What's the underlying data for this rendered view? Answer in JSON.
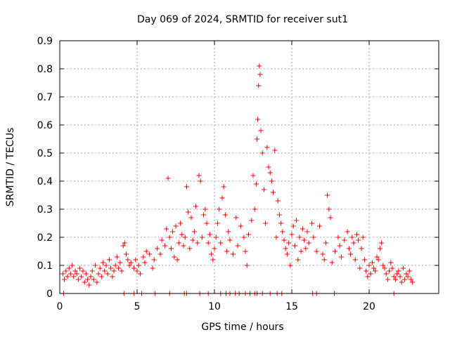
{
  "chart_data": {
    "type": "scatter",
    "title": "Day 069 of 2024, SRMTID for receiver sut1",
    "xlabel": "GPS time / hours",
    "ylabel": "SRMTID / TECUs",
    "xlim": [
      0,
      24.5
    ],
    "ylim": [
      0,
      0.9
    ],
    "xticks": [
      0,
      5,
      10,
      15,
      20
    ],
    "xtick_labels": [
      "0",
      "5",
      "10",
      "15",
      "20"
    ],
    "yticks": [
      0,
      0.1,
      0.2,
      0.3,
      0.4,
      0.5,
      0.6,
      0.7,
      0.8,
      0.9
    ],
    "ytick_labels": [
      "0",
      "0.1",
      "0.2",
      "0.3",
      "0.4",
      "0.5",
      "0.6",
      "0.7",
      "0.8",
      "0.9"
    ],
    "grid": true,
    "marker": "+",
    "color": "#ff0000",
    "series": [
      {
        "name": "SRMTID",
        "points": [
          [
            0.2,
            0.07
          ],
          [
            0.3,
            0.05
          ],
          [
            0.4,
            0.08
          ],
          [
            0.5,
            0.06
          ],
          [
            0.6,
            0.09
          ],
          [
            0.7,
            0.07
          ],
          [
            0.8,
            0.1
          ],
          [
            0.9,
            0.06
          ],
          [
            1.0,
            0.08
          ],
          [
            1.1,
            0.07
          ],
          [
            1.2,
            0.05
          ],
          [
            1.3,
            0.09
          ],
          [
            1.4,
            0.06
          ],
          [
            1.5,
            0.08
          ],
          [
            1.6,
            0.04
          ],
          [
            1.7,
            0.07
          ],
          [
            1.8,
            0.05
          ],
          [
            1.9,
            0.03
          ],
          [
            2.0,
            0.06
          ],
          [
            2.1,
            0.08
          ],
          [
            2.2,
            0.05
          ],
          [
            2.3,
            0.1
          ],
          [
            2.4,
            0.04
          ],
          [
            2.5,
            0.07
          ],
          [
            2.6,
            0.09
          ],
          [
            2.7,
            0.06
          ],
          [
            2.8,
            0.11
          ],
          [
            2.9,
            0.08
          ],
          [
            3.0,
            0.1
          ],
          [
            3.1,
            0.07
          ],
          [
            3.2,
            0.12
          ],
          [
            3.3,
            0.09
          ],
          [
            3.4,
            0.06
          ],
          [
            3.5,
            0.08
          ],
          [
            3.6,
            0.1
          ],
          [
            3.7,
            0.13
          ],
          [
            3.8,
            0.09
          ],
          [
            3.9,
            0.11
          ],
          [
            4.0,
            0.08
          ],
          [
            4.1,
            0.17
          ],
          [
            4.2,
            0.18
          ],
          [
            4.3,
            0.14
          ],
          [
            4.4,
            0.12
          ],
          [
            4.5,
            0.1
          ],
          [
            4.6,
            0.11
          ],
          [
            4.8,
            0.09
          ],
          [
            4.9,
            0.12
          ],
          [
            5.0,
            0.08
          ],
          [
            5.1,
            0.1
          ],
          [
            5.2,
            0.07
          ],
          [
            5.4,
            0.13
          ],
          [
            5.5,
            0.11
          ],
          [
            5.6,
            0.15
          ],
          [
            5.8,
            0.14
          ],
          [
            6.0,
            0.09
          ],
          [
            6.1,
            0.12
          ],
          [
            6.3,
            0.16
          ],
          [
            6.5,
            0.14
          ],
          [
            6.6,
            0.19
          ],
          [
            6.8,
            0.17
          ],
          [
            6.9,
            0.23
          ],
          [
            7.0,
            0.41
          ],
          [
            7.1,
            0.2
          ],
          [
            7.2,
            0.16
          ],
          [
            7.3,
            0.22
          ],
          [
            7.4,
            0.13
          ],
          [
            7.5,
            0.24
          ],
          [
            7.6,
            0.12
          ],
          [
            7.7,
            0.18
          ],
          [
            7.8,
            0.25
          ],
          [
            7.9,
            0.21
          ],
          [
            8.0,
            0.17
          ],
          [
            8.1,
            0.2
          ],
          [
            8.2,
            0.38
          ],
          [
            8.3,
            0.29
          ],
          [
            8.4,
            0.16
          ],
          [
            8.5,
            0.27
          ],
          [
            8.6,
            0.19
          ],
          [
            8.7,
            0.22
          ],
          [
            8.8,
            0.31
          ],
          [
            8.9,
            0.18
          ],
          [
            9.0,
            0.42
          ],
          [
            9.1,
            0.4
          ],
          [
            9.2,
            0.2
          ],
          [
            9.3,
            0.28
          ],
          [
            9.4,
            0.3
          ],
          [
            9.5,
            0.25
          ],
          [
            9.6,
            0.18
          ],
          [
            9.7,
            0.21
          ],
          [
            9.8,
            0.14
          ],
          [
            9.9,
            0.12
          ],
          [
            10.0,
            0.16
          ],
          [
            10.1,
            0.2
          ],
          [
            10.2,
            0.25
          ],
          [
            10.3,
            0.3
          ],
          [
            10.4,
            0.18
          ],
          [
            10.5,
            0.34
          ],
          [
            10.6,
            0.38
          ],
          [
            10.7,
            0.28
          ],
          [
            10.8,
            0.15
          ],
          [
            10.9,
            0.22
          ],
          [
            11.0,
            0.19
          ],
          [
            11.2,
            0.14
          ],
          [
            11.4,
            0.27
          ],
          [
            11.5,
            0.17
          ],
          [
            11.7,
            0.24
          ],
          [
            11.9,
            0.2
          ],
          [
            12.0,
            0.15
          ],
          [
            12.1,
            0.1
          ],
          [
            12.2,
            0.21
          ],
          [
            12.4,
            0.26
          ],
          [
            12.5,
            0.42
          ],
          [
            12.6,
            0.3
          ],
          [
            12.7,
            0.39
          ],
          [
            12.75,
            0.55
          ],
          [
            12.8,
            0.62
          ],
          [
            12.85,
            0.74
          ],
          [
            12.9,
            0.81
          ],
          [
            12.95,
            0.78
          ],
          [
            13.0,
            0.58
          ],
          [
            13.1,
            0.5
          ],
          [
            13.2,
            0.37
          ],
          [
            13.3,
            0.25
          ],
          [
            13.4,
            0.52
          ],
          [
            13.5,
            0.45
          ],
          [
            13.6,
            0.43
          ],
          [
            13.7,
            0.4
          ],
          [
            13.8,
            0.36
          ],
          [
            13.9,
            0.51
          ],
          [
            14.0,
            0.2
          ],
          [
            14.1,
            0.33
          ],
          [
            14.2,
            0.28
          ],
          [
            14.3,
            0.25
          ],
          [
            14.4,
            0.22
          ],
          [
            14.5,
            0.19
          ],
          [
            14.6,
            0.16
          ],
          [
            14.7,
            0.14
          ],
          [
            14.8,
            0.18
          ],
          [
            14.9,
            0.1
          ],
          [
            15.0,
            0.21
          ],
          [
            15.1,
            0.24
          ],
          [
            15.2,
            0.17
          ],
          [
            15.3,
            0.26
          ],
          [
            15.4,
            0.12
          ],
          [
            15.5,
            0.2
          ],
          [
            15.6,
            0.15
          ],
          [
            15.7,
            0.23
          ],
          [
            15.8,
            0.19
          ],
          [
            15.9,
            0.16
          ],
          [
            16.0,
            0.22
          ],
          [
            16.1,
            0.18
          ],
          [
            16.3,
            0.25
          ],
          [
            16.4,
            0.2
          ],
          [
            16.6,
            0.15
          ],
          [
            16.8,
            0.24
          ],
          [
            17.0,
            0.14
          ],
          [
            17.1,
            0.12
          ],
          [
            17.2,
            0.18
          ],
          [
            17.3,
            0.35
          ],
          [
            17.4,
            0.3
          ],
          [
            17.5,
            0.27
          ],
          [
            17.6,
            0.11
          ],
          [
            17.8,
            0.15
          ],
          [
            18.0,
            0.2
          ],
          [
            18.1,
            0.17
          ],
          [
            18.2,
            0.13
          ],
          [
            18.4,
            0.19
          ],
          [
            18.6,
            0.22
          ],
          [
            18.7,
            0.16
          ],
          [
            18.8,
            0.14
          ],
          [
            18.9,
            0.2
          ],
          [
            19.0,
            0.18
          ],
          [
            19.1,
            0.12
          ],
          [
            19.2,
            0.21
          ],
          [
            19.3,
            0.19
          ],
          [
            19.4,
            0.09
          ],
          [
            19.5,
            0.16
          ],
          [
            19.6,
            0.2
          ],
          [
            19.7,
            0.12
          ],
          [
            19.8,
            0.08
          ],
          [
            19.9,
            0.06
          ],
          [
            20.0,
            0.1
          ],
          [
            20.1,
            0.07
          ],
          [
            20.2,
            0.11
          ],
          [
            20.3,
            0.09
          ],
          [
            20.4,
            0.08
          ],
          [
            20.5,
            0.13
          ],
          [
            20.6,
            0.12
          ],
          [
            20.7,
            0.16
          ],
          [
            20.8,
            0.18
          ],
          [
            20.9,
            0.1
          ],
          [
            21.0,
            0.09
          ],
          [
            21.1,
            0.07
          ],
          [
            21.2,
            0.05
          ],
          [
            21.3,
            0.08
          ],
          [
            21.4,
            0.11
          ],
          [
            21.5,
            0.09
          ],
          [
            21.6,
            0.06
          ],
          [
            21.7,
            0.05
          ],
          [
            21.8,
            0.07
          ],
          [
            21.9,
            0.08
          ],
          [
            22.0,
            0.06
          ],
          [
            22.1,
            0.04
          ],
          [
            22.2,
            0.09
          ],
          [
            22.3,
            0.05
          ],
          [
            22.4,
            0.07
          ],
          [
            22.5,
            0.06
          ],
          [
            22.6,
            0.08
          ],
          [
            22.7,
            0.05
          ],
          [
            22.8,
            0.04
          ],
          [
            0.25,
            0.0
          ],
          [
            4.15,
            0.0
          ],
          [
            4.8,
            0.0
          ],
          [
            5.3,
            0.0
          ],
          [
            6.15,
            0.0
          ],
          [
            7.1,
            0.0
          ],
          [
            8.05,
            0.0
          ],
          [
            8.2,
            0.0
          ],
          [
            9.05,
            0.0
          ],
          [
            9.6,
            0.0
          ],
          [
            10.4,
            0.0
          ],
          [
            10.75,
            0.0
          ],
          [
            11.0,
            0.0
          ],
          [
            11.35,
            0.0
          ],
          [
            11.6,
            0.0
          ],
          [
            12.0,
            0.0
          ],
          [
            12.3,
            0.0
          ],
          [
            12.6,
            0.0
          ],
          [
            12.75,
            0.0
          ],
          [
            13.1,
            0.0
          ],
          [
            13.6,
            0.0
          ],
          [
            14.05,
            0.0
          ],
          [
            14.35,
            0.0
          ],
          [
            16.35,
            0.0
          ],
          [
            16.6,
            0.0
          ],
          [
            17.75,
            0.0
          ],
          [
            21.6,
            0.0
          ]
        ]
      }
    ]
  }
}
